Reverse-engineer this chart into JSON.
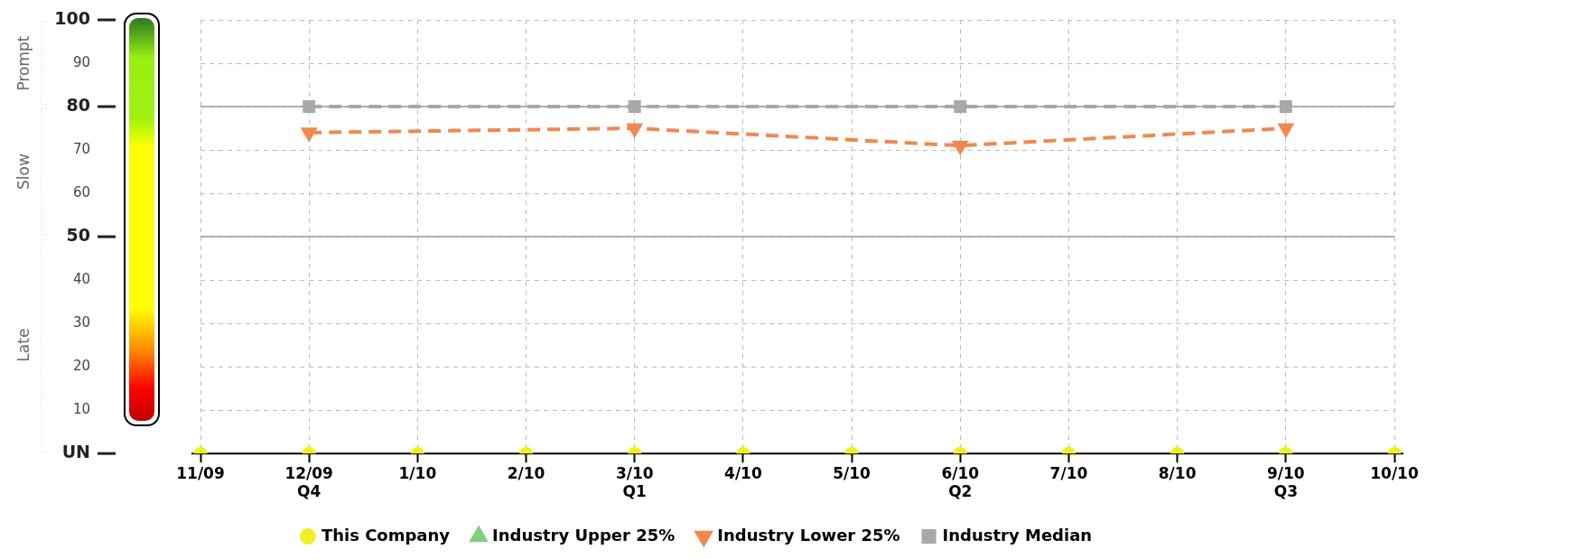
{
  "chart_data": {
    "type": "line",
    "categories": [
      "11/09",
      "12/09\nQ4",
      "1/10",
      "2/10",
      "3/10\nQ1",
      "4/10",
      "5/10",
      "6/10\nQ2",
      "7/10",
      "8/10",
      "9/10\nQ3",
      "10/10"
    ],
    "series": [
      {
        "name": "This Company",
        "type": "scatter",
        "color": "#f0f020",
        "marker": "circle",
        "x": [
          "11/09",
          "12/09\nQ4",
          "1/10",
          "2/10",
          "3/10\nQ1",
          "4/10",
          "5/10",
          "6/10\nQ2",
          "7/10",
          "8/10",
          "9/10\nQ3",
          "10/10"
        ],
        "values": [
          0,
          0,
          0,
          0,
          0,
          0,
          0,
          0,
          0,
          0,
          0,
          0
        ]
      },
      {
        "name": "Industry Upper 25%",
        "color": "#80d080",
        "marker": "triangle",
        "line_style": "dashed",
        "values": [
          null,
          null,
          null,
          null,
          null,
          null,
          null,
          null,
          null,
          null,
          null,
          null
        ]
      },
      {
        "name": "Industry Lower 25%",
        "color": "#f08850",
        "marker": "triangle",
        "line_style": "dashed",
        "values": [
          null,
          74,
          null,
          null,
          75,
          null,
          null,
          71,
          null,
          null,
          75,
          null
        ]
      },
      {
        "name": "Industry Median",
        "color": "#a8a8a8",
        "marker": "square",
        "line_style": "dashed",
        "values": [
          null,
          80,
          null,
          null,
          80,
          null,
          null,
          80,
          null,
          null,
          80,
          null
        ]
      }
    ],
    "ylim": [
      0,
      100
    ],
    "yticks": [
      {
        "value": 0,
        "label": "UN"
      },
      10,
      20,
      30,
      40,
      50,
      60,
      70,
      80,
      90,
      100
    ],
    "ref_lines": [
      {
        "axis": "y",
        "value": 80,
        "color": "#999999"
      },
      {
        "axis": "y",
        "value": 50,
        "color": "#999999"
      }
    ],
    "annotations": [
      "Prompt",
      "Slow",
      "Late"
    ],
    "grid": true,
    "legend": "bottom"
  }
}
